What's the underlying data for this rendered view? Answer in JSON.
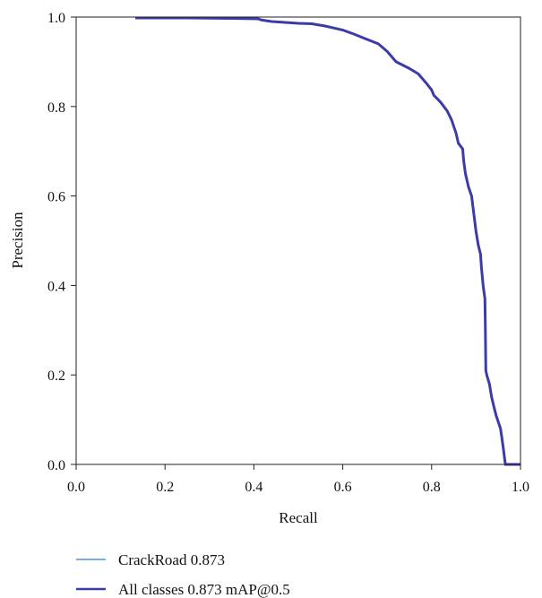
{
  "chart_data": {
    "type": "line",
    "title": "",
    "xlabel": "Recall",
    "ylabel": "Precision",
    "xlim": [
      0.0,
      1.0
    ],
    "ylim": [
      0.0,
      1.0
    ],
    "x_ticks": [
      "0.0",
      "0.2",
      "0.4",
      "0.6",
      "0.8",
      "1.0"
    ],
    "y_ticks": [
      "0.0",
      "0.2",
      "0.4",
      "0.6",
      "0.8",
      "1.0"
    ],
    "grid": false,
    "legend_position": "bottom",
    "series": [
      {
        "name": "CrackRoad 0.873",
        "color": "#2a7fd0",
        "points": [
          [
            0.133,
            0.998
          ],
          [
            0.25,
            0.998
          ],
          [
            0.35,
            0.997
          ],
          [
            0.41,
            0.996
          ],
          [
            0.415,
            0.994
          ],
          [
            0.42,
            0.993
          ],
          [
            0.44,
            0.99
          ],
          [
            0.5,
            0.986
          ],
          [
            0.53,
            0.985
          ],
          [
            0.56,
            0.98
          ],
          [
            0.6,
            0.971
          ],
          [
            0.625,
            0.962
          ],
          [
            0.65,
            0.952
          ],
          [
            0.68,
            0.94
          ],
          [
            0.7,
            0.923
          ],
          [
            0.72,
            0.9
          ],
          [
            0.75,
            0.885
          ],
          [
            0.77,
            0.873
          ],
          [
            0.79,
            0.85
          ],
          [
            0.8,
            0.837
          ],
          [
            0.805,
            0.825
          ],
          [
            0.82,
            0.81
          ],
          [
            0.835,
            0.79
          ],
          [
            0.845,
            0.77
          ],
          [
            0.855,
            0.74
          ],
          [
            0.86,
            0.718
          ],
          [
            0.87,
            0.705
          ],
          [
            0.872,
            0.68
          ],
          [
            0.876,
            0.65
          ],
          [
            0.883,
            0.62
          ],
          [
            0.89,
            0.6
          ],
          [
            0.895,
            0.56
          ],
          [
            0.9,
            0.52
          ],
          [
            0.905,
            0.49
          ],
          [
            0.91,
            0.47
          ],
          [
            0.912,
            0.44
          ],
          [
            0.916,
            0.4
          ],
          [
            0.92,
            0.37
          ],
          [
            0.921,
            0.3
          ],
          [
            0.922,
            0.21
          ],
          [
            0.924,
            0.2
          ],
          [
            0.93,
            0.18
          ],
          [
            0.935,
            0.15
          ],
          [
            0.94,
            0.13
          ],
          [
            0.945,
            0.11
          ],
          [
            0.95,
            0.095
          ],
          [
            0.955,
            0.08
          ],
          [
            0.958,
            0.06
          ],
          [
            0.962,
            0.03
          ],
          [
            0.966,
            0.0
          ],
          [
            0.973,
            0.0
          ],
          [
            1.0,
            0.0
          ]
        ]
      },
      {
        "name": "All classes 0.873 mAP@0.5",
        "color": "#3c3ca8",
        "same_as_series": 0
      }
    ]
  }
}
